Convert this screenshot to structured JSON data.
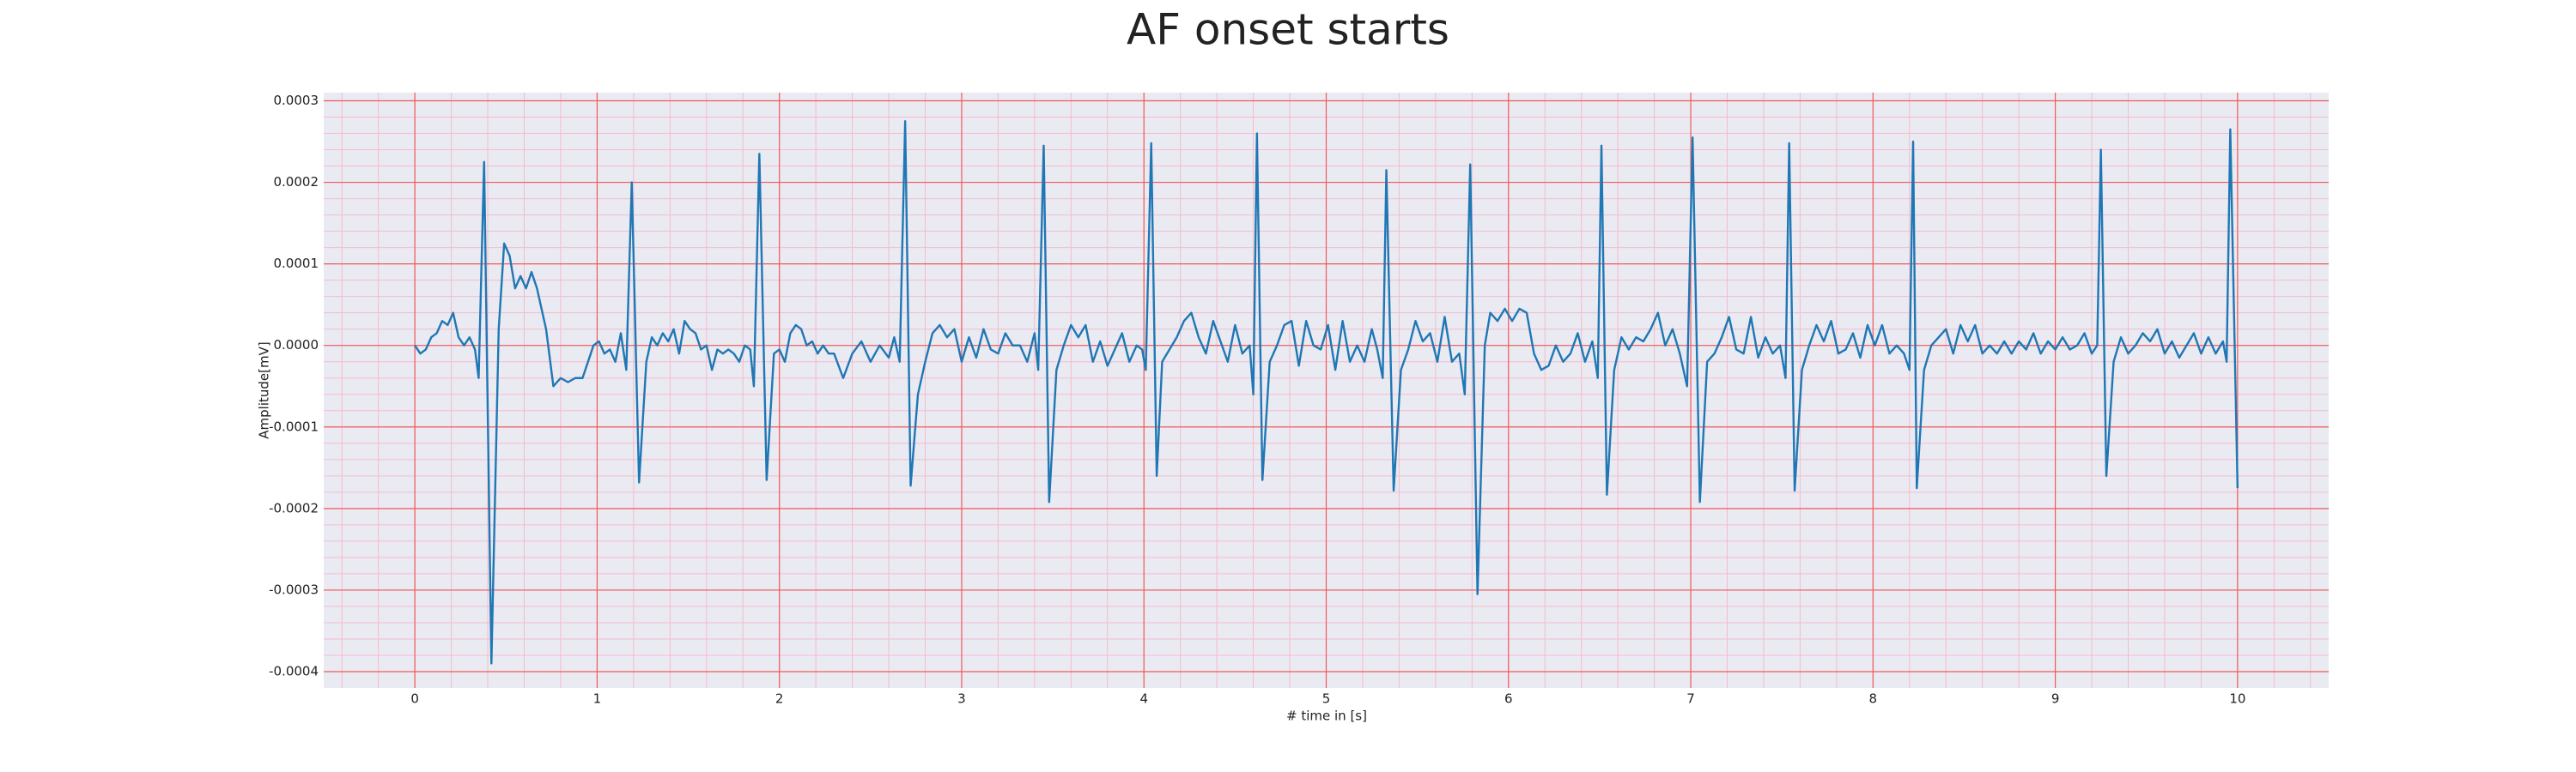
{
  "chart_data": {
    "type": "line",
    "title": "AF onset starts",
    "xlabel": "# time in [s]",
    "ylabel": "Amplitude[mV]",
    "color": "#1f77b4",
    "grid": true,
    "minor_grid": 5,
    "xlim": [
      -0.5,
      10.5
    ],
    "xticks": [
      0,
      1,
      2,
      3,
      4,
      5,
      6,
      7,
      8,
      9,
      10
    ],
    "ylim": [
      -0.00042,
      0.00031
    ],
    "yticks": [
      -0.0004,
      -0.0003,
      -0.0002,
      -0.0001,
      {
        "value": 0,
        "label": "0.0000"
      },
      0.0001,
      0.0002,
      0.0003
    ],
    "x": [
      0,
      0.03,
      0.06,
      0.09,
      0.12,
      0.15,
      0.18,
      0.21,
      0.24,
      0.27,
      0.3,
      0.33,
      0.35,
      0.38,
      0.42,
      0.46,
      0.49,
      0.52,
      0.55,
      0.58,
      0.61,
      0.64,
      0.67,
      0.72,
      0.76,
      0.8,
      0.84,
      0.88,
      0.92,
      0.95,
      0.98,
      1.01,
      1.04,
      1.07,
      1.1,
      1.13,
      1.16,
      1.19,
      1.23,
      1.27,
      1.3,
      1.33,
      1.36,
      1.39,
      1.42,
      1.45,
      1.48,
      1.51,
      1.54,
      1.57,
      1.6,
      1.63,
      1.66,
      1.69,
      1.72,
      1.75,
      1.78,
      1.81,
      1.84,
      1.86,
      1.89,
      1.93,
      1.97,
      2,
      2.03,
      2.06,
      2.09,
      2.12,
      2.15,
      2.18,
      2.21,
      2.24,
      2.27,
      2.3,
      2.35,
      2.4,
      2.45,
      2.5,
      2.55,
      2.6,
      2.63,
      2.66,
      2.69,
      2.72,
      2.76,
      2.8,
      2.84,
      2.88,
      2.92,
      2.96,
      3,
      3.04,
      3.08,
      3.12,
      3.16,
      3.2,
      3.24,
      3.28,
      3.32,
      3.36,
      3.4,
      3.42,
      3.45,
      3.48,
      3.52,
      3.56,
      3.6,
      3.64,
      3.68,
      3.72,
      3.76,
      3.8,
      3.84,
      3.88,
      3.92,
      3.96,
      3.99,
      4.01,
      4.04,
      4.07,
      4.1,
      4.14,
      4.18,
      4.22,
      4.26,
      4.3,
      4.34,
      4.38,
      4.42,
      4.46,
      4.5,
      4.54,
      4.58,
      4.6,
      4.62,
      4.65,
      4.69,
      4.73,
      4.77,
      4.81,
      4.85,
      4.89,
      4.93,
      4.97,
      5.01,
      5.05,
      5.09,
      5.13,
      5.17,
      5.21,
      5.25,
      5.28,
      5.31,
      5.33,
      5.37,
      5.41,
      5.45,
      5.49,
      5.53,
      5.57,
      5.61,
      5.65,
      5.69,
      5.73,
      5.76,
      5.79,
      5.83,
      5.87,
      5.9,
      5.94,
      5.98,
      6.02,
      6.06,
      6.1,
      6.14,
      6.18,
      6.22,
      6.26,
      6.3,
      6.34,
      6.38,
      6.42,
      6.46,
      6.49,
      6.51,
      6.54,
      6.58,
      6.62,
      6.66,
      6.7,
      6.74,
      6.78,
      6.82,
      6.86,
      6.9,
      6.94,
      6.98,
      7.01,
      7.05,
      7.09,
      7.13,
      7.17,
      7.21,
      7.25,
      7.29,
      7.33,
      7.37,
      7.41,
      7.45,
      7.49,
      7.52,
      7.54,
      7.57,
      7.61,
      7.65,
      7.69,
      7.73,
      7.77,
      7.81,
      7.85,
      7.89,
      7.93,
      7.97,
      8.01,
      8.05,
      8.09,
      8.13,
      8.17,
      8.2,
      8.22,
      8.24,
      8.28,
      8.32,
      8.36,
      8.4,
      8.44,
      8.48,
      8.52,
      8.56,
      8.6,
      8.64,
      8.68,
      8.72,
      8.76,
      8.8,
      8.84,
      8.88,
      8.92,
      8.96,
      9,
      9.04,
      9.08,
      9.12,
      9.16,
      9.2,
      9.23,
      9.25,
      9.28,
      9.32,
      9.36,
      9.4,
      9.44,
      9.48,
      9.52,
      9.56,
      9.6,
      9.64,
      9.68,
      9.72,
      9.76,
      9.8,
      9.84,
      9.88,
      9.92,
      9.94,
      9.96,
      10
    ],
    "values": [
      0,
      -1e-05,
      -5e-06,
      1e-05,
      1.5e-05,
      3e-05,
      2.5e-05,
      4e-05,
      1e-05,
      0,
      1e-05,
      -5e-06,
      -4e-05,
      0.000225,
      -0.00039,
      2e-05,
      0.000125,
      0.00011,
      7e-05,
      8.5e-05,
      7e-05,
      9e-05,
      7e-05,
      2e-05,
      -5e-05,
      -4e-05,
      -4.5e-05,
      -4e-05,
      -4e-05,
      -2e-05,
      0,
      5e-06,
      -1e-05,
      -5e-06,
      -2e-05,
      1.5e-05,
      -3e-05,
      0.0002,
      -0.000168,
      -2e-05,
      1e-05,
      0,
      1.5e-05,
      5e-06,
      2e-05,
      -1e-05,
      3e-05,
      2e-05,
      1.5e-05,
      -5e-06,
      0,
      -3e-05,
      -5e-06,
      -1e-05,
      -5e-06,
      -1e-05,
      -2e-05,
      0,
      -5e-06,
      -5e-05,
      0.000235,
      -0.000165,
      -1e-05,
      -5e-06,
      -2e-05,
      1.5e-05,
      2.5e-05,
      2e-05,
      0,
      5e-06,
      -1e-05,
      0,
      -1e-05,
      -1e-05,
      -4e-05,
      -1e-05,
      5e-06,
      -2e-05,
      0,
      -1.5e-05,
      1e-05,
      -2e-05,
      0.000275,
      -0.000172,
      -6e-05,
      -2e-05,
      1.5e-05,
      2.5e-05,
      1e-05,
      2e-05,
      -2e-05,
      1e-05,
      -1.5e-05,
      2e-05,
      -5e-06,
      -1e-05,
      1.5e-05,
      0,
      0,
      -2e-05,
      1.5e-05,
      -3e-05,
      0.000245,
      -0.000192,
      -3e-05,
      0,
      2.5e-05,
      1e-05,
      2.5e-05,
      -2e-05,
      5e-06,
      -2.5e-05,
      -5e-06,
      1.5e-05,
      -2e-05,
      0,
      -5e-06,
      -3e-05,
      0.000248,
      -0.00016,
      -2e-05,
      -5e-06,
      1e-05,
      3e-05,
      4e-05,
      1e-05,
      -1e-05,
      3e-05,
      5e-06,
      -2e-05,
      2.5e-05,
      -1e-05,
      0,
      -6e-05,
      0.00026,
      -0.000165,
      -2e-05,
      0,
      2.5e-05,
      3e-05,
      -2.5e-05,
      3e-05,
      0,
      -5e-06,
      2.5e-05,
      -3e-05,
      3e-05,
      -2e-05,
      0,
      -2e-05,
      2e-05,
      -5e-06,
      -4e-05,
      0.000215,
      -0.000178,
      -3e-05,
      -5e-06,
      3e-05,
      5e-06,
      1.5e-05,
      -2e-05,
      3.5e-05,
      -2e-05,
      -1e-05,
      -6e-05,
      0.000222,
      -0.000305,
      0,
      4e-05,
      3e-05,
      4.5e-05,
      3e-05,
      4.5e-05,
      4e-05,
      -1e-05,
      -3e-05,
      -2.5e-05,
      0,
      -2e-05,
      -1e-05,
      1.5e-05,
      -2e-05,
      5e-06,
      -4e-05,
      0.000245,
      -0.000183,
      -3e-05,
      1e-05,
      -5e-06,
      1e-05,
      5e-06,
      2e-05,
      4e-05,
      0,
      2e-05,
      -1e-05,
      -5e-05,
      0.000255,
      -0.000192,
      -2e-05,
      -1e-05,
      1e-05,
      3.5e-05,
      -5e-06,
      -1e-05,
      3.5e-05,
      -1.5e-05,
      1e-05,
      -1e-05,
      0,
      -4e-05,
      0.000248,
      -0.000178,
      -3e-05,
      0,
      2.5e-05,
      5e-06,
      3e-05,
      -1e-05,
      -5e-06,
      1.5e-05,
      -1.5e-05,
      2.5e-05,
      0,
      2.5e-05,
      -1e-05,
      0,
      -1e-05,
      -3e-05,
      0.00025,
      -0.000175,
      -3e-05,
      0,
      1e-05,
      2e-05,
      -1e-05,
      2.5e-05,
      5e-06,
      2.5e-05,
      -1e-05,
      0,
      -1e-05,
      5e-06,
      -1e-05,
      5e-06,
      -5e-06,
      1.5e-05,
      -1e-05,
      5e-06,
      -5e-06,
      1e-05,
      -5e-06,
      0,
      1.5e-05,
      -1e-05,
      0,
      0.00024,
      -0.00016,
      -2e-05,
      1e-05,
      -1e-05,
      0,
      1.5e-05,
      5e-06,
      2e-05,
      -1e-05,
      5e-06,
      -1.5e-05,
      0,
      1.5e-05,
      -1e-05,
      1e-05,
      -1e-05,
      5e-06,
      -2e-05,
      0.000265,
      -0.000175
    ]
  }
}
